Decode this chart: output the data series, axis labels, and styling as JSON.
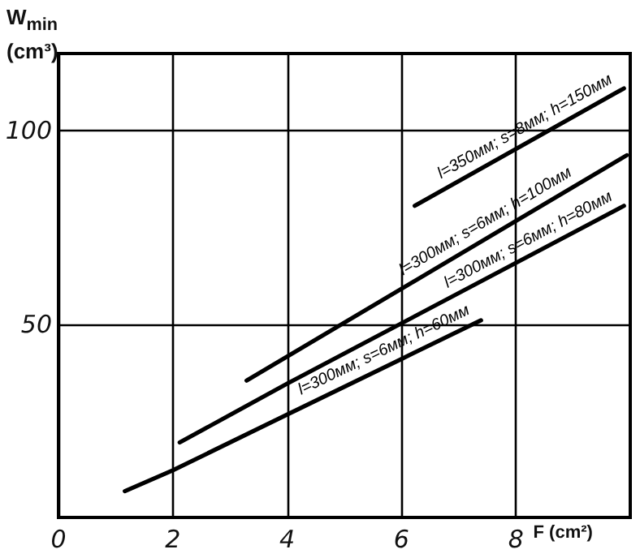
{
  "chart_data": {
    "type": "line",
    "xlabel": "F (cm²)",
    "ylabel": "W$_{min}$\n(cm³)",
    "xlim": [
      0,
      10
    ],
    "ylim": [
      0,
      120
    ],
    "xticks": [
      0,
      2,
      4,
      6,
      8
    ],
    "yticks": [
      50,
      100
    ],
    "grid": true,
    "marker": "none",
    "line_style": "solid",
    "series": [
      {
        "color": "#000000",
        "x": [
          6.23,
          9.89
        ],
        "values": [
          80.6,
          111
        ]
      },
      {
        "color": "#000000",
        "x": [
          3.29,
          9.94
        ],
        "values": [
          35.4,
          93.7
        ]
      },
      {
        "color": "#000000",
        "x": [
          2.12,
          4,
          9.89
        ],
        "values": [
          19.4,
          34.6,
          80.6
        ]
      },
      {
        "color": "#000000",
        "x": [
          1.16,
          2,
          4,
          6,
          7.39
        ],
        "values": [
          6.8,
          12.2,
          26.6,
          41,
          51
        ]
      }
    ],
    "annotations": [
      "l=350мм; s=8мм; h=150мм",
      "l=300мм; s=6мм; h=100мм",
      "l=300мм; s=6мм; h=80мм",
      "l=300мм; s=6мм; h=60мм"
    ]
  }
}
